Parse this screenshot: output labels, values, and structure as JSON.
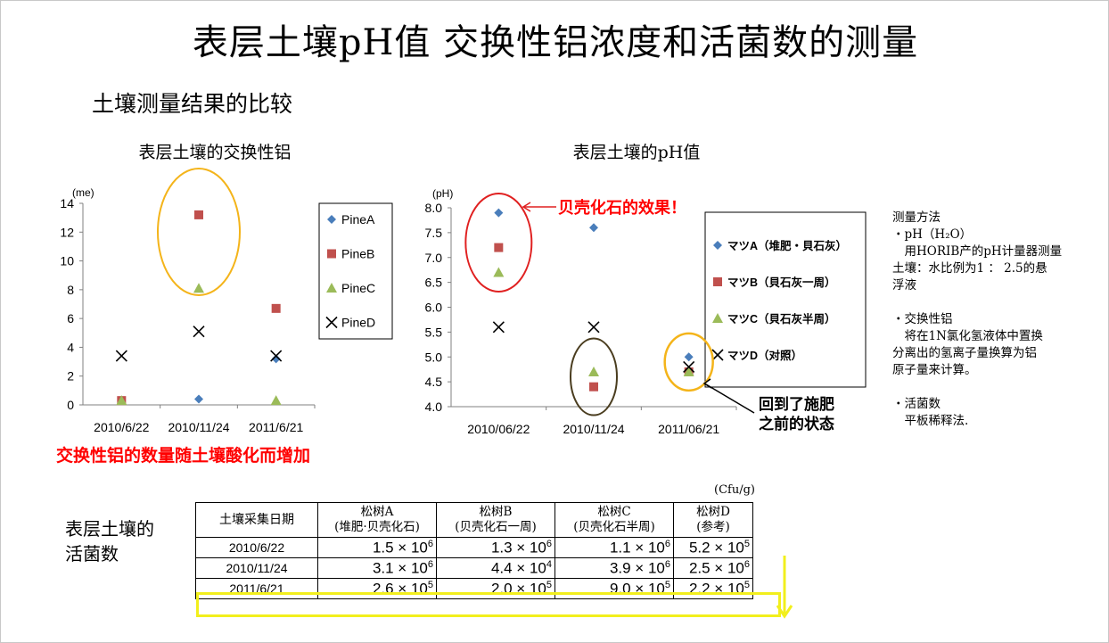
{
  "title": "表层土壤pH值 交换性铝浓度和活菌数的测量",
  "subtitle": "土壤测量结果的比较",
  "chart_data": [
    {
      "type": "scatter",
      "title": "表层土壤的交换性铝",
      "ylabel": "(me)",
      "categories": [
        "2010/6/22",
        "2010/11/24",
        "2011/6/21"
      ],
      "ylim": [
        0,
        14
      ],
      "yticks": [
        "0",
        "2",
        "4",
        "6",
        "8",
        "10",
        "12",
        "14"
      ],
      "legend_position": "right",
      "series": [
        {
          "name": "PineA",
          "values": [
            0.3,
            0.4,
            3.2
          ],
          "color": "#4a7ebb",
          "marker": "diamond"
        },
        {
          "name": "PineB",
          "values": [
            0.3,
            13.2,
            6.7
          ],
          "color": "#c0504d",
          "marker": "square"
        },
        {
          "name": "PineC",
          "values": [
            0.3,
            8.1,
            0.3
          ],
          "color": "#9bbb59",
          "marker": "triangle"
        },
        {
          "name": "PineD",
          "values": [
            3.4,
            5.1,
            3.4
          ],
          "color": "#000000",
          "marker": "x"
        }
      ],
      "annotation": "交换性铝的数量随土壤酸化而增加"
    },
    {
      "type": "scatter",
      "title": "表层土壤的pH值",
      "ylabel": "(pH)",
      "categories": [
        "2010/06/22",
        "2010/11/24",
        "2011/06/21"
      ],
      "ylim": [
        4.0,
        8.0
      ],
      "yticks": [
        "4.0",
        "4.5",
        "5.0",
        "5.5",
        "6.0",
        "6.5",
        "7.0",
        "7.5",
        "8.0"
      ],
      "legend_position": "right",
      "series": [
        {
          "name": "マツA（堆肥・貝石灰）",
          "values": [
            7.9,
            7.6,
            5.0
          ],
          "color": "#4a7ebb",
          "marker": "diamond"
        },
        {
          "name": "マツB（貝石灰一周）",
          "values": [
            7.2,
            4.4,
            4.7
          ],
          "color": "#c0504d",
          "marker": "square"
        },
        {
          "name": "マツC（貝石灰半周）",
          "values": [
            6.7,
            4.7,
            4.7
          ],
          "color": "#9bbb59",
          "marker": "triangle"
        },
        {
          "name": "マツD（对照）",
          "values": [
            5.6,
            5.6,
            4.8
          ],
          "color": "#000000",
          "marker": "x"
        }
      ],
      "annotations": [
        "贝壳化石的效果！",
        "回到了施肥",
        "之前的状态"
      ]
    }
  ],
  "method": {
    "lines": [
      "测量方法",
      "・pH（H₂O）",
      "　用HORIB产的pH计量器测量",
      "土壤：水比例为1 ： 2.5的悬",
      "浮液",
      "",
      "・交换性铝",
      "　将在1N氯化氢液体中置换",
      "分离出的氢离子量换算为铝",
      "原子量来计算。",
      "",
      "・活菌数",
      "　平板稀释法."
    ]
  },
  "bacteria": {
    "label_line1": "表层土壤的",
    "label_line2": "活菌数",
    "unit": "(Cfu/g)",
    "headers": {
      "date": "土壤采集日期",
      "a1": "松树A",
      "a2": "(堆肥·贝壳化石)",
      "b1": "松树B",
      "b2": "(贝壳化石一周)",
      "c1": "松树C",
      "c2": "(贝壳化石半周)",
      "d1": "松树D",
      "d2": "(参考)"
    },
    "rows": [
      {
        "date": "2010/6/22",
        "a": {
          "m": "1.5",
          "e": "6"
        },
        "b": {
          "m": "1.3",
          "e": "6"
        },
        "c": {
          "m": "1.1",
          "e": "6"
        },
        "d": {
          "m": "5.2",
          "e": "5"
        }
      },
      {
        "date": "2010/11/24",
        "a": {
          "m": "3.1",
          "e": "6"
        },
        "b": {
          "m": "4.4",
          "e": "4"
        },
        "c": {
          "m": "3.9",
          "e": "6"
        },
        "d": {
          "m": "2.5",
          "e": "6"
        }
      },
      {
        "date": "2011/6/21",
        "a": {
          "m": "2.6",
          "e": "5"
        },
        "b": {
          "m": "2.0",
          "e": "5"
        },
        "c": {
          "m": "9.0",
          "e": "5"
        },
        "d": {
          "m": "2.2",
          "e": "5"
        }
      }
    ],
    "times": "× 10",
    "highlight_color": "#f2ef1c"
  }
}
